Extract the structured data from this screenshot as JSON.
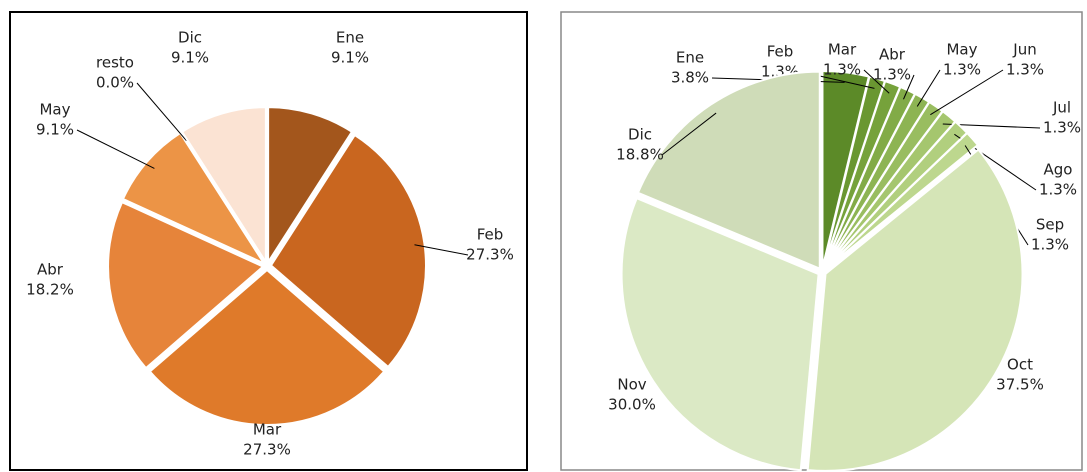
{
  "chart_data": [
    {
      "type": "pie",
      "categories": [
        "Ene",
        "Feb",
        "Mar",
        "Abr",
        "May",
        "resto",
        "Dic"
      ],
      "values": [
        9.1,
        27.3,
        27.3,
        18.2,
        9.1,
        0.0,
        9.1
      ],
      "value_labels": [
        "9.1%",
        "27.3%",
        "27.3%",
        "18.2%",
        "9.1%",
        "0.0%",
        "9.1%"
      ],
      "colors": [
        "#a3561c",
        "#c9661f",
        "#df7a2a",
        "#e6843a",
        "#ec9446",
        "#f2ad73",
        "#fbe3d3"
      ]
    },
    {
      "type": "pie",
      "categories": [
        "Ene",
        "Feb",
        "Mar",
        "Abr",
        "May",
        "Jun",
        "Jul",
        "Ago",
        "Sep",
        "Oct",
        "Nov",
        "Dic"
      ],
      "values": [
        3.8,
        1.3,
        1.3,
        1.3,
        1.3,
        1.3,
        1.3,
        1.3,
        1.3,
        37.5,
        30.0,
        18.8
      ],
      "value_labels": [
        "3.8%",
        "1.3%",
        "1.3%",
        "1.3%",
        "1.3%",
        "1.3%",
        "1.3%",
        "1.3%",
        "1.3%",
        "37.5%",
        "30.0%",
        "18.8%"
      ],
      "colors": [
        "#5c8a28",
        "#6a9731",
        "#76a23b",
        "#82ab47",
        "#8db453",
        "#99bd60",
        "#a5c66e",
        "#b1cf7e",
        "#bdd78e",
        "#d5e5b7",
        "#dbe9c5",
        "#cfdcb8"
      ]
    }
  ]
}
